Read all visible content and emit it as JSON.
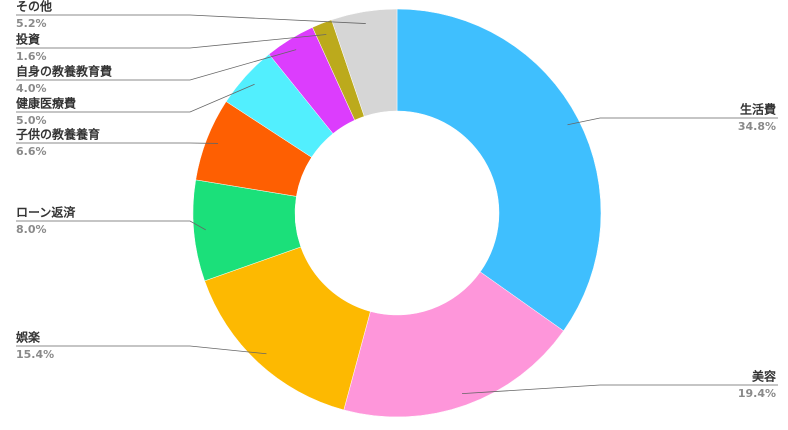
{
  "chart_data": {
    "type": "pie",
    "categories": [
      "生活費",
      "美容",
      "娯楽",
      "ローン返済",
      "子供の教養養育",
      "健康医療費",
      "自身の教養教育費",
      "投資",
      "その他"
    ],
    "values": [
      34.8,
      19.4,
      15.4,
      8.0,
      6.6,
      5.0,
      4.0,
      1.6,
      5.2
    ],
    "value_labels": [
      "34.8%",
      "19.4%",
      "15.4%",
      "8.0%",
      "6.6%",
      "5.0%",
      "4.0%",
      "1.6%",
      "5.2%"
    ],
    "colors": [
      "#3fbffe",
      "#fe96da",
      "#fdb901",
      "#1be07a",
      "#fe5f02",
      "#52effe",
      "#dc3dfd",
      "#bcaa1c",
      "#d6d6d6"
    ]
  }
}
